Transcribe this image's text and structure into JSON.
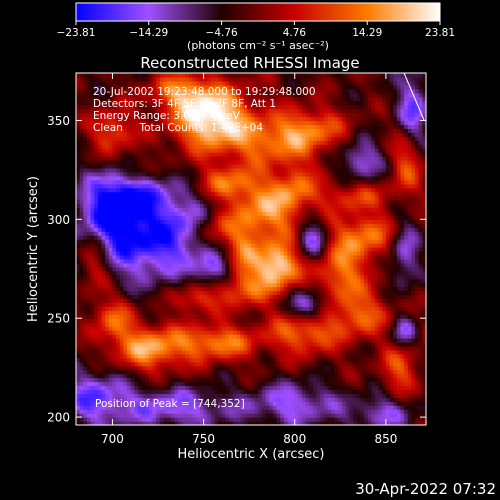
{
  "chart_data": {
    "type": "heatmap",
    "title": "Reconstructed RHESSI Image",
    "xlabel": "Heliocentric X (arcsec)",
    "ylabel": "Heliocentric Y (arcsec)",
    "xlim": [
      680,
      872
    ],
    "ylim": [
      196,
      374
    ],
    "xticks": [
      700,
      750,
      800,
      850
    ],
    "yticks": [
      200,
      250,
      300,
      350
    ],
    "colorbar": {
      "ticks": [
        -23.81,
        -14.29,
        -4.76,
        4.76,
        14.29,
        23.81
      ],
      "tick_labels": [
        "−23.81",
        "−14.29",
        "−4.76",
        "4.76",
        "14.29",
        "23.81"
      ],
      "unit_label": "(photons cm⁻² s⁻¹ asec⁻²)",
      "min": -23.81,
      "max": 23.81,
      "colors": [
        "#0000ff",
        "#a050ff",
        "#200000",
        "#c80000",
        "#ff7a00",
        "#ffffff"
      ]
    },
    "info_lines": [
      "20-Jul-2002 19:23:48.000 to 19:29:48.000",
      "Detectors: 3F 4F 5F 6F 7F 8F, Att 1",
      "Energy Range: 3.0 - 6.0 keV",
      "Clean     Total Counts: 1.48E+04"
    ],
    "peak_label": "Position of Peak = [744,352]",
    "peak": {
      "x": 744,
      "y": 352
    },
    "sources": [
      {
        "x": 754,
        "y": 352,
        "sx": 14,
        "sy": 10,
        "amp": 24
      },
      {
        "x": 738,
        "y": 365,
        "sx": 12,
        "sy": 6,
        "amp": 14
      },
      {
        "x": 790,
        "y": 340,
        "sx": 18,
        "sy": 8,
        "amp": 13
      },
      {
        "x": 810,
        "y": 347,
        "sx": 12,
        "sy": 7,
        "amp": 11
      },
      {
        "x": 862,
        "y": 330,
        "sx": 6,
        "sy": 12,
        "amp": 13
      },
      {
        "x": 800,
        "y": 316,
        "sx": 8,
        "sy": 8,
        "amp": 11
      },
      {
        "x": 765,
        "y": 318,
        "sx": 12,
        "sy": 6,
        "amp": 13
      },
      {
        "x": 832,
        "y": 312,
        "sx": 14,
        "sy": 5,
        "amp": 9
      },
      {
        "x": 785,
        "y": 304,
        "sx": 12,
        "sy": 9,
        "amp": 15
      },
      {
        "x": 838,
        "y": 292,
        "sx": 12,
        "sy": 8,
        "amp": 14
      },
      {
        "x": 825,
        "y": 273,
        "sx": 10,
        "sy": 10,
        "amp": 13
      },
      {
        "x": 790,
        "y": 277,
        "sx": 8,
        "sy": 8,
        "amp": 23
      },
      {
        "x": 772,
        "y": 285,
        "sx": 7,
        "sy": 12,
        "amp": 12
      },
      {
        "x": 756,
        "y": 295,
        "sx": 8,
        "sy": 7,
        "amp": 11
      },
      {
        "x": 722,
        "y": 298,
        "sx": 10,
        "sy": 8,
        "amp": 9
      },
      {
        "x": 770,
        "y": 265,
        "sx": 12,
        "sy": 6,
        "amp": 10
      },
      {
        "x": 720,
        "y": 235,
        "sx": 14,
        "sy": 8,
        "amp": 19
      },
      {
        "x": 700,
        "y": 250,
        "sx": 8,
        "sy": 8,
        "amp": 13
      },
      {
        "x": 757,
        "y": 238,
        "sx": 15,
        "sy": 6,
        "amp": 16
      },
      {
        "x": 805,
        "y": 243,
        "sx": 12,
        "sy": 7,
        "amp": 14
      },
      {
        "x": 835,
        "y": 252,
        "sx": 12,
        "sy": 8,
        "amp": 12
      },
      {
        "x": 858,
        "y": 225,
        "sx": 7,
        "sy": 9,
        "amp": 12
      },
      {
        "x": 745,
        "y": 260,
        "sx": 8,
        "sy": 5,
        "amp": 11
      },
      {
        "x": 700,
        "y": 345,
        "sx": 8,
        "sy": 8,
        "amp": 13
      },
      {
        "x": 690,
        "y": 278,
        "sx": 6,
        "sy": 10,
        "amp": 11
      },
      {
        "x": 712,
        "y": 325,
        "sx": 6,
        "sy": 5,
        "amp": 8
      },
      {
        "x": 720,
        "y": 296,
        "sx": 22,
        "sy": 16,
        "amp": -28
      },
      {
        "x": 702,
        "y": 310,
        "sx": 12,
        "sy": 10,
        "amp": -16
      },
      {
        "x": 690,
        "y": 210,
        "sx": 14,
        "sy": 10,
        "amp": -14
      },
      {
        "x": 735,
        "y": 205,
        "sx": 22,
        "sy": 7,
        "amp": -13
      },
      {
        "x": 800,
        "y": 207,
        "sx": 18,
        "sy": 8,
        "amp": -13
      },
      {
        "x": 848,
        "y": 202,
        "sx": 12,
        "sy": 6,
        "amp": -11
      },
      {
        "x": 808,
        "y": 257,
        "sx": 8,
        "sy": 6,
        "amp": -16
      },
      {
        "x": 810,
        "y": 290,
        "sx": 6,
        "sy": 8,
        "amp": -15
      },
      {
        "x": 755,
        "y": 275,
        "sx": 7,
        "sy": 6,
        "amp": -14
      },
      {
        "x": 836,
        "y": 330,
        "sx": 8,
        "sy": 7,
        "amp": -14
      },
      {
        "x": 860,
        "y": 283,
        "sx": 6,
        "sy": 12,
        "amp": -13
      },
      {
        "x": 865,
        "y": 355,
        "sx": 6,
        "sy": 14,
        "amp": -15
      },
      {
        "x": 860,
        "y": 243,
        "sx": 5,
        "sy": 6,
        "amp": -12
      },
      {
        "x": 760,
        "y": 340,
        "sx": 30,
        "sy": 25,
        "amp": 4
      },
      {
        "x": 805,
        "y": 275,
        "sx": 45,
        "sy": 40,
        "amp": 3
      }
    ]
  },
  "footer": {
    "timestamp": "30-Apr-2022 07:32"
  }
}
